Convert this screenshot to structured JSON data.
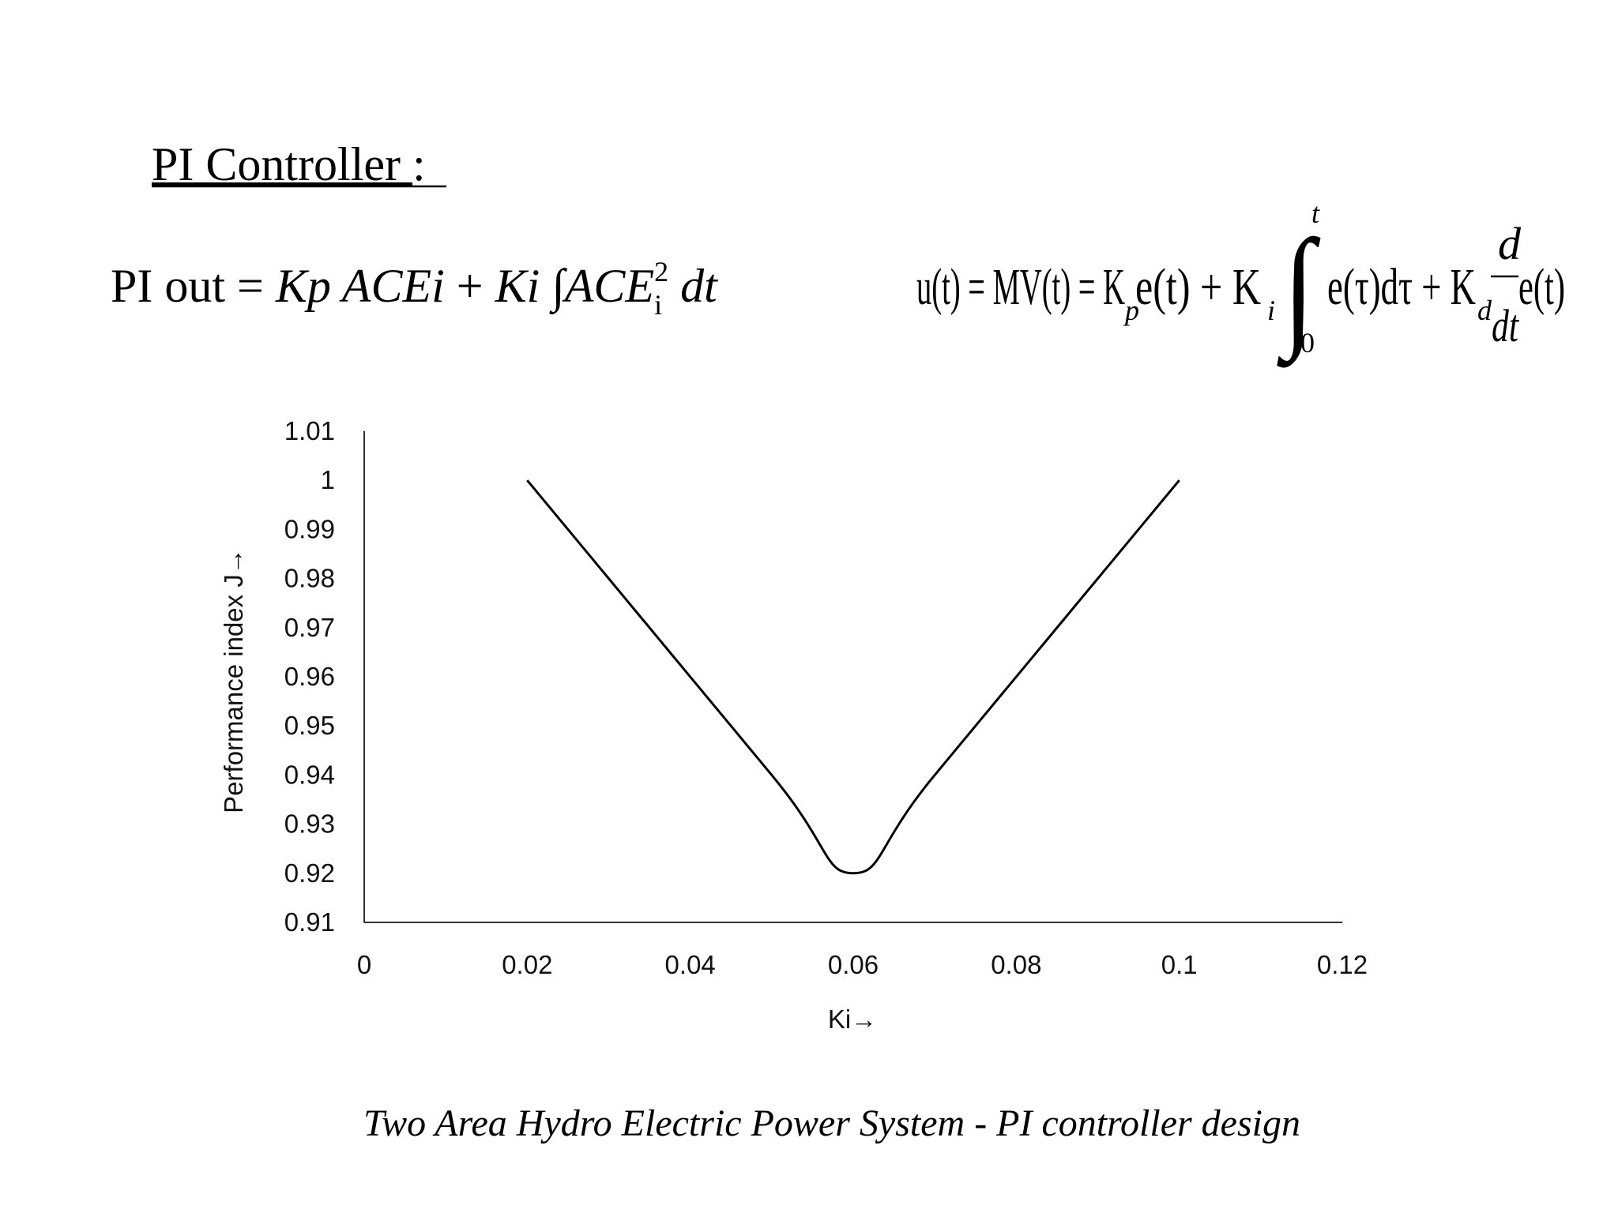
{
  "slide": {
    "heading": [
      "PI Controller ",
      ":"
    ],
    "formula_left": [
      "PI out = ",
      "Kp ACEi",
      " + ",
      "Ki ",
      "∫",
      "ACE",
      "i",
      "2",
      " dt"
    ],
    "formula_right": [
      "u(t) = MV(t) = K",
      "p",
      "e(t) + K",
      "i",
      "∫",
      "0",
      "t",
      "e(τ)dτ + K",
      "d",
      "d",
      "dt",
      "e(t)"
    ],
    "caption": "Two Area Hydro Electric Power System  - PI controller design"
  },
  "chart_data": {
    "type": "line",
    "x_label": "Ki→",
    "y_label": "Performance index J→",
    "x": [
      0.02,
      0.05,
      0.06,
      0.07,
      0.1
    ],
    "series": [
      {
        "color": "#000000",
        "values": [
          1,
          0.94,
          0.92,
          0.94,
          1
        ]
      }
    ],
    "xlim": [
      0,
      0.12
    ],
    "xticks": [
      0,
      0.02,
      0.04,
      0.06,
      0.08,
      0.1,
      0.12
    ],
    "ylim": [
      0.91,
      1.01
    ],
    "yticks": [
      0.91,
      0.92,
      0.93,
      0.94,
      0.95,
      0.96,
      0.97,
      0.98,
      0.99,
      1,
      1.01
    ],
    "grid": false,
    "smooth": true
  }
}
